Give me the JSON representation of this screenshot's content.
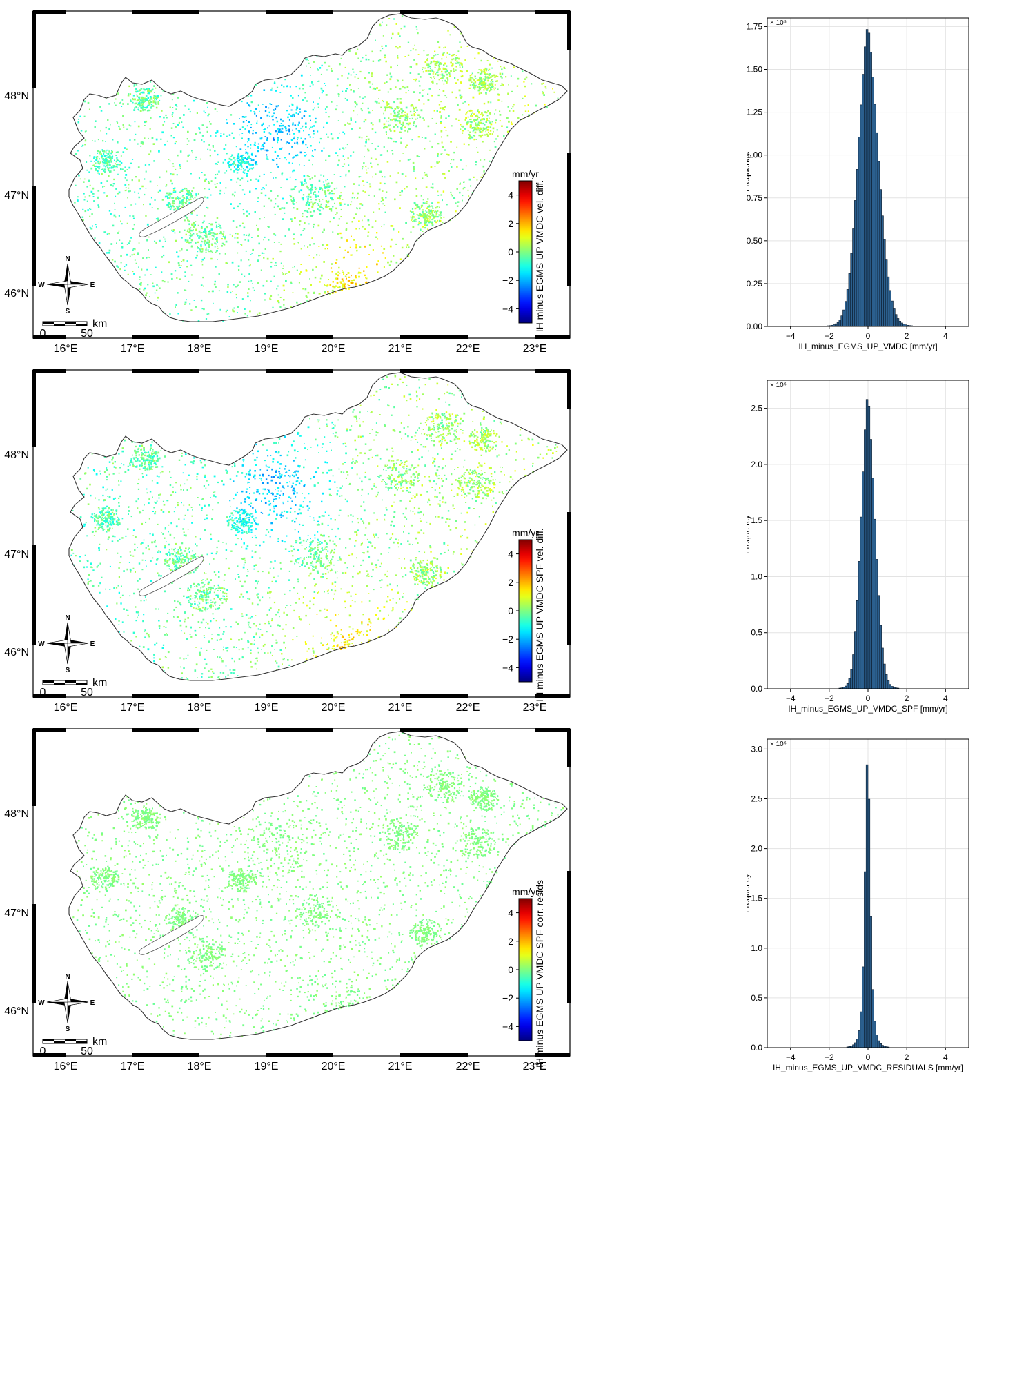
{
  "maps": [
    {
      "colorbar_title": "mm/yr",
      "colorbar_label": "IH minus EGMS UP VMDC vel. diff.",
      "colorbar_ticks": [
        4,
        2,
        0,
        -2,
        -4
      ],
      "colorbar_range": [
        -5,
        5
      ],
      "lat_ticks": [
        "48°N",
        "47°N",
        "46°N"
      ],
      "lon_ticks": [
        "16°E",
        "17°E",
        "18°E",
        "19°E",
        "20°E",
        "21°E",
        "22°E",
        "23°E"
      ],
      "compass": {
        "n": "N",
        "s": "S",
        "e": "E",
        "w": "W"
      },
      "scalebar": {
        "start": "0",
        "end": "50",
        "unit": "km"
      },
      "palette": "mixed"
    },
    {
      "colorbar_title": "mm/yr",
      "colorbar_label": "IH minus EGMS UP VMDC SPF vel. diff.",
      "colorbar_ticks": [
        4,
        2,
        0,
        -2,
        -4
      ],
      "colorbar_range": [
        -5,
        5
      ],
      "lat_ticks": [
        "48°N",
        "47°N",
        "46°N"
      ],
      "lon_ticks": [
        "16°E",
        "17°E",
        "18°E",
        "19°E",
        "20°E",
        "21°E",
        "22°E",
        "23°E"
      ],
      "compass": {
        "n": "N",
        "s": "S",
        "e": "E",
        "w": "W"
      },
      "scalebar": {
        "start": "0",
        "end": "50",
        "unit": "km"
      },
      "palette": "mixed"
    },
    {
      "colorbar_title": "mm/yr",
      "colorbar_label": "IH minus EGMS UP VMDC SPF corr. resids",
      "colorbar_ticks": [
        4,
        2,
        0,
        -2,
        -4
      ],
      "colorbar_range": [
        -5,
        5
      ],
      "lat_ticks": [
        "48°N",
        "47°N",
        "46°N"
      ],
      "lon_ticks": [
        "16°E",
        "17°E",
        "18°E",
        "19°E",
        "20°E",
        "21°E",
        "22°E",
        "23°E"
      ],
      "compass": {
        "n": "N",
        "s": "S",
        "e": "E",
        "w": "W"
      },
      "scalebar": {
        "start": "0",
        "end": "50",
        "unit": "km"
      },
      "palette": "green"
    }
  ],
  "chart_data": [
    {
      "type": "bar",
      "xlabel": "IH_minus_EGMS_UP_VMDC [mm/yr]",
      "ylabel": "Frequency",
      "multiplier": "× 10⁵",
      "xlim": [
        -5.2,
        5.2
      ],
      "ylim": [
        0,
        1.8
      ],
      "xticks": [
        -4,
        -2,
        0,
        2,
        4
      ],
      "yticks": [
        0,
        0.25,
        0.5,
        0.75,
        1.0,
        1.25,
        1.5,
        1.75
      ],
      "ytick_labels": [
        "0.00",
        "0.25",
        "0.50",
        "0.75",
        "1.00",
        "1.25",
        "1.50",
        "1.75"
      ],
      "grid": true,
      "dist": {
        "peak": 1.74,
        "center": -0.02,
        "sigma": 0.55,
        "skew": 0.06,
        "xmin": -3.2,
        "xmax": 3.4,
        "binwidth": 0.1
      }
    },
    {
      "type": "bar",
      "xlabel": "IH_minus_EGMS_UP_VMDC_SPF [mm/yr]",
      "ylabel": "Frequency",
      "multiplier": "× 10⁵",
      "xlim": [
        -5.2,
        5.2
      ],
      "ylim": [
        0,
        2.75
      ],
      "xticks": [
        -4,
        -2,
        0,
        2,
        4
      ],
      "yticks": [
        0,
        0.5,
        1.0,
        1.5,
        2.0,
        2.5
      ],
      "ytick_labels": [
        "0.0",
        "0.5",
        "1.0",
        "1.5",
        "2.0",
        "2.5"
      ],
      "grid": true,
      "dist": {
        "peak": 2.6,
        "center": -0.02,
        "sigma": 0.38,
        "skew": 0.05,
        "xmin": -2.4,
        "xmax": 2.4,
        "binwidth": 0.1
      }
    },
    {
      "type": "bar",
      "xlabel": "IH_minus_EGMS_UP_VMDC_RESIDUALS [mm/yr]",
      "ylabel": "Frequency",
      "multiplier": "× 10⁵",
      "xlim": [
        -5.2,
        5.2
      ],
      "ylim": [
        0,
        3.1
      ],
      "xticks": [
        -4,
        -2,
        0,
        2,
        4
      ],
      "yticks": [
        0,
        0.5,
        1.0,
        1.5,
        2.0,
        2.5,
        3.0
      ],
      "ytick_labels": [
        "0.0",
        "0.5",
        "1.0",
        "1.5",
        "2.0",
        "2.5",
        "3.0"
      ],
      "grid": true,
      "dist": {
        "peak": 2.93,
        "center": -0.02,
        "sigma": 0.33,
        "skew": 0.0,
        "xmin": -3.0,
        "xmax": 3.0,
        "binwidth": 0.1,
        "heavy": true
      }
    }
  ]
}
